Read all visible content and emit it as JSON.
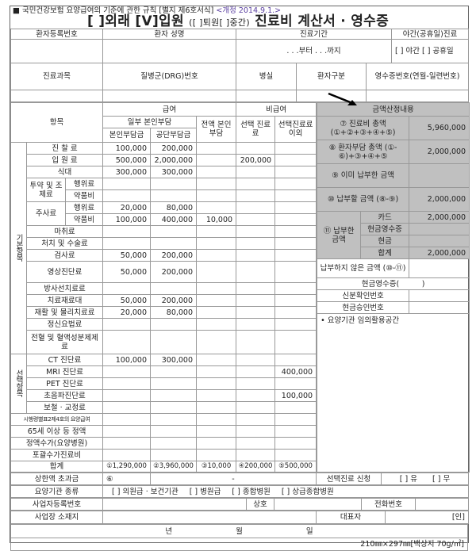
{
  "notice": {
    "bullet": "■",
    "text": "국민건강보험 요양급여의 기준에 관한 규칙 [별지 제6호서식]",
    "revision": "<개정 2014.9.1.>"
  },
  "title": {
    "outpatient": "[ ]외래",
    "inpatient": "[V]입원",
    "discharge": "([ ]퇴원[ ]중간)",
    "main": "진료비 계산서 · 영수증"
  },
  "header": {
    "patient_no": "환자등록번호",
    "patient_name": "환자 성명",
    "period": "진료기간",
    "night": "야간(공휴일)진료",
    "period_value": ". . .부터 . . .까지",
    "night_value": "[ ] 야간 [ ] 공휴일",
    "dept": "진료과목",
    "drg": "질병군(DRG)번호",
    "room": "병실",
    "patient_type": "환자구분",
    "receipt_no": "영수증번호(연월-일련번호)"
  },
  "main": {
    "col_item": "항목",
    "covered": "급여",
    "noncovered": "비급여",
    "partial": "일부 본인부담",
    "self_share": "본인부담금",
    "corp_share": "공단부담금",
    "full_self": "전액 본인부담",
    "selective": "선택 진료료",
    "non_selective": "선택진료료 이외",
    "groups": [
      "기본항목",
      "선택항목"
    ],
    "rows": [
      {
        "label": "진 찰 료",
        "v": [
          "100,000",
          "200,000",
          "",
          "",
          ""
        ]
      },
      {
        "label": "입 원 료",
        "v": [
          "500,000",
          "2,000,000",
          "",
          "200,000",
          ""
        ]
      },
      {
        "label": "식대",
        "v": [
          "300,000",
          "300,000",
          "",
          "",
          ""
        ]
      },
      {
        "category": "투약 및 조제료",
        "label": "행위료",
        "v": [
          "",
          "",
          "",
          "",
          ""
        ]
      },
      {
        "label": "약품비",
        "v": [
          "",
          "",
          "",
          "",
          ""
        ]
      },
      {
        "category": "주사료",
        "label": "행위료",
        "v": [
          "20,000",
          "80,000",
          "",
          "",
          ""
        ]
      },
      {
        "label": "약품비",
        "v": [
          "100,000",
          "400,000",
          "10,000",
          "",
          ""
        ]
      },
      {
        "label": "마취료",
        "v": [
          "",
          "",
          "",
          "",
          ""
        ]
      },
      {
        "label": "처치 및 수술료",
        "v": [
          "",
          "",
          "",
          "",
          ""
        ]
      },
      {
        "label": "검사료",
        "v": [
          "50,000",
          "200,000",
          "",
          "",
          ""
        ]
      },
      {
        "label": "영상진단료",
        "v": [
          "50,000",
          "200,000",
          "",
          "",
          ""
        ]
      },
      {
        "label": "방사선치료료",
        "v": [
          "",
          "",
          "",
          "",
          ""
        ]
      },
      {
        "label": "치료재료대",
        "v": [
          "50,000",
          "200,000",
          "",
          "",
          ""
        ]
      },
      {
        "label": "재활 및 물리치료료",
        "v": [
          "20,000",
          "80,000",
          "",
          "",
          ""
        ]
      },
      {
        "label": "정신요법료",
        "v": [
          "",
          "",
          "",
          "",
          ""
        ]
      },
      {
        "label": "전혈 및 혈액성분제제료",
        "v": [
          "",
          "",
          "",
          "",
          ""
        ]
      },
      {
        "label": "CT 진단료",
        "v": [
          "100,000",
          "300,000",
          "",
          "",
          ""
        ]
      },
      {
        "label": "MRI 진단료",
        "v": [
          "",
          "",
          "",
          "",
          "400,000"
        ]
      },
      {
        "label": "PET 진단료",
        "v": [
          "",
          "",
          "",
          "",
          ""
        ]
      },
      {
        "label": "초음파진단료",
        "v": [
          "",
          "",
          "",
          "",
          "100,000"
        ]
      },
      {
        "label": "보철 · 교정료",
        "v": [
          "",
          "",
          "",
          "",
          ""
        ]
      },
      {
        "label": "시행령별표2제4호의 요양급여",
        "v": [
          "",
          "",
          "",
          "",
          ""
        ]
      },
      {
        "label": "65세 이상 등 정액",
        "v": [
          "",
          "",
          "",
          "",
          ""
        ]
      },
      {
        "label": "정액수가(요양병원)",
        "v": [
          "",
          "",
          "",
          "",
          ""
        ]
      },
      {
        "label": "포괄수가진료비",
        "v": [
          "",
          "",
          "",
          "",
          ""
        ]
      },
      {
        "label": "합계",
        "v": [
          "①1,290,000",
          "②3,960,000",
          "③10,000",
          "④200,000",
          "⑤500,000"
        ]
      }
    ]
  },
  "calc": {
    "title": "금액산정내용",
    "total_label": "⑦ 진료비 총액 (①+②+③+④+⑤)",
    "total": "5,960,000",
    "patient_label": "⑧ 환자부담 총액 (①-⑥)+③+④+⑤",
    "patient": "2,000,000",
    "paid_label": "⑨ 이미 납부한 금액",
    "paid": "",
    "due_label": "⑩ 납부할 금액 (⑧-⑨)",
    "due": "2,000,000",
    "payment_label": "⑪ 납부한 금액",
    "card": "카드",
    "card_value": "2,000,000",
    "cash_receipt": "현금영수증",
    "cash_receipt_value": "",
    "cash": "현금",
    "cash_value": "",
    "sum": "합계",
    "sum_value": "2,000,000",
    "unpaid_label": "납부하지 않은 금액 (⑩-⑪)",
    "unpaid": "",
    "cash_receipt_paren": "현금영수증(　　　)",
    "id_no": "신분확인번호",
    "approval_no": "현금승인번호",
    "free_space": "• 요양기관 임의활용공간"
  },
  "footer": {
    "ceiling_label": "상한액 초과금",
    "ceiling_mark": "⑥",
    "ceiling_value": "-",
    "selective_req": "선택진료 신청",
    "selective_opts": "[ ] 유　　[ ] 무",
    "inst_type": "요양기관 종류",
    "inst_opts": [
      "[ ] 의원급 · 보건기관",
      "[ ] 병원급",
      "[ ] 종합병원",
      "[ ] 상급종합병원"
    ],
    "biz_no": "사업자등록번호",
    "company": "상호",
    "phone": "전화번호",
    "address": "사업장 소재지",
    "rep": "대표자",
    "seal": "[인]",
    "date": [
      "년",
      "월",
      "일"
    ],
    "paper": "210㎜×297㎜[백상지 70g/㎡]"
  }
}
